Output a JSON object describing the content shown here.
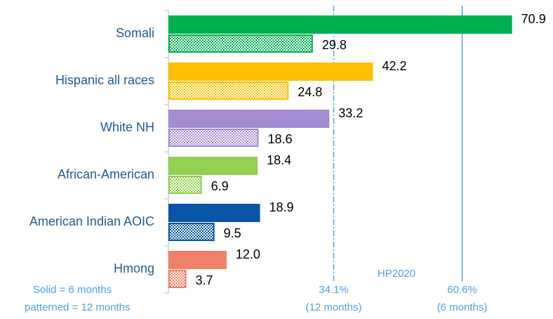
{
  "chart_data": {
    "type": "bar",
    "orientation": "horizontal",
    "categories": [
      "Somali",
      "Hispanic all races",
      "White NH",
      "African-American",
      "American Indian AOIC",
      "Hmong"
    ],
    "colors": [
      "#00b050",
      "#ffc000",
      "#a58bd2",
      "#92d050",
      "#0a55a8",
      "#f08068"
    ],
    "series": [
      {
        "name": "Solid = 6 months",
        "pattern": "solid",
        "values": [
          70.9,
          42.2,
          33.2,
          18.4,
          18.9,
          12.0
        ],
        "value_labels": [
          "70.9",
          "42.2",
          "33.2",
          "18.4",
          "18.9",
          "12.0"
        ]
      },
      {
        "name": "patterned = 12 months",
        "pattern": "hatched",
        "values": [
          29.8,
          24.8,
          18.6,
          6.9,
          9.5,
          3.7
        ],
        "value_labels": [
          "29.8",
          "24.8",
          "18.6",
          "6.9",
          "9.5",
          "3.7"
        ]
      }
    ],
    "xlim": [
      0,
      75
    ],
    "reference_title": "HP2020",
    "reference_lines": [
      {
        "value": 34.1,
        "label": "34.1%",
        "sublabel": "(12 months)",
        "style": "dashdot"
      },
      {
        "value": 60.6,
        "label": "60.6%",
        "sublabel": "(6 months)",
        "style": "solid"
      }
    ]
  }
}
